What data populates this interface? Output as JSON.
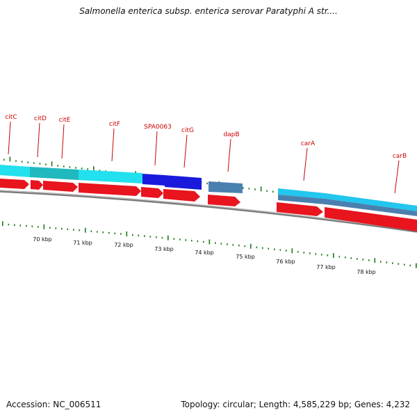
{
  "title": "Salmonella enterica subsp. enterica serovar Paratyphi A str....",
  "footer": {
    "accession": "Accession: NC_006511",
    "stats": "Topology: circular; Length: 4,585,229 bp; Genes: 4,232"
  },
  "genes": [
    "citC",
    "citD",
    "citE",
    "citF",
    "SPA0063",
    "citG",
    "dapB",
    "carA",
    "carB"
  ],
  "kbp_ticks": [
    "70 kbp",
    "71 kbp",
    "72 kbp",
    "73 kbp",
    "74 kbp",
    "75 kbp",
    "76 kbp",
    "77 kbp",
    "78 kbp"
  ],
  "colors": {
    "label": "#cc0000",
    "tick": "#1a7a1a",
    "forward_cds": "#e8141e",
    "cyan": "#22e0ee",
    "teal": "#1fb9bf",
    "blue": "#1a1adc",
    "steel": "#4a80b0",
    "backbone": "#7a7a7a"
  }
}
